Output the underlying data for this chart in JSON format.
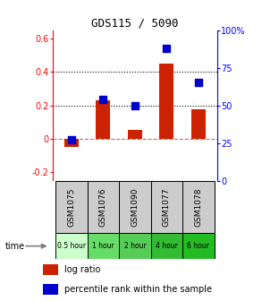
{
  "title": "GDS115 / 5090",
  "categories": [
    "GSM1075",
    "GSM1076",
    "GSM1090",
    "GSM1077",
    "GSM1078"
  ],
  "time_labels": [
    "0.5 hour",
    "1 hour",
    "2 hour",
    "4 hour",
    "6 hour"
  ],
  "time_colors": [
    "#ccffcc",
    "#66dd66",
    "#55cc55",
    "#33bb33",
    "#22bb22"
  ],
  "log_ratio": [
    -0.05,
    0.23,
    0.055,
    0.45,
    0.175
  ],
  "percentile": [
    0.27,
    0.54,
    0.5,
    0.88,
    0.65
  ],
  "bar_color": "#cc2200",
  "dot_color": "#0000cc",
  "ylim_left": [
    -0.25,
    0.65
  ],
  "ylim_right": [
    0,
    1.0
  ],
  "yticks_left": [
    -0.2,
    0.0,
    0.2,
    0.4,
    0.6
  ],
  "yticks_right": [
    0,
    0.25,
    0.5,
    0.75,
    1.0
  ],
  "yticklabels_left": [
    "-0.2",
    "0",
    "0.2",
    "0.4",
    "0.6"
  ],
  "yticklabels_right": [
    "0",
    "25",
    "50",
    "75",
    "100%"
  ],
  "hlines": [
    0.2,
    0.4
  ],
  "zero_line": 0.0,
  "bg_color": "#ffffff",
  "legend_log_ratio": "log ratio",
  "legend_percentile": "percentile rank within the sample"
}
